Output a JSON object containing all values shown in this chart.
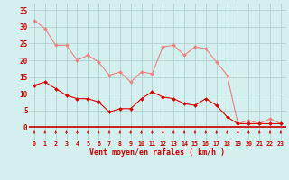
{
  "hours": [
    0,
    1,
    2,
    3,
    4,
    5,
    6,
    7,
    8,
    9,
    10,
    11,
    12,
    13,
    14,
    15,
    16,
    17,
    18,
    19,
    20,
    21,
    22,
    23
  ],
  "rafales": [
    32,
    29.5,
    24.5,
    24.5,
    20,
    21.5,
    19.5,
    15.5,
    16.5,
    13.5,
    16.5,
    16,
    24,
    24.5,
    21.5,
    24,
    23.5,
    19.5,
    15.5,
    1,
    2,
    1,
    2.5,
    1
  ],
  "vent_moyen": [
    12.5,
    13.5,
    11.5,
    9.5,
    8.5,
    8.5,
    7.5,
    4.5,
    5.5,
    5.5,
    8.5,
    10.5,
    9,
    8.5,
    7,
    6.5,
    8.5,
    6.5,
    3,
    1,
    1,
    1,
    1,
    1
  ],
  "line_color_rafales": "#f08080",
  "line_color_vent": "#dd0000",
  "marker_color_rafales": "#f08080",
  "marker_color_vent": "#dd0000",
  "bg_color": "#d4f0ee",
  "grid_color": "#aacccc",
  "axis_line_color": "#cc0000",
  "xlabel": "Vent moyen/en rafales ( km/h )",
  "xlabel_color": "#cc0000",
  "tick_color": "#cc0000",
  "ytick_labels": [
    "0",
    "5",
    "10",
    "15",
    "20",
    "25",
    "30",
    "35"
  ],
  "ytick_vals": [
    0,
    5,
    10,
    15,
    20,
    25,
    30,
    35
  ],
  "ylim": [
    -4,
    37
  ],
  "xlim": [
    -0.5,
    23.5
  ],
  "arrow_color": "#cc0000"
}
